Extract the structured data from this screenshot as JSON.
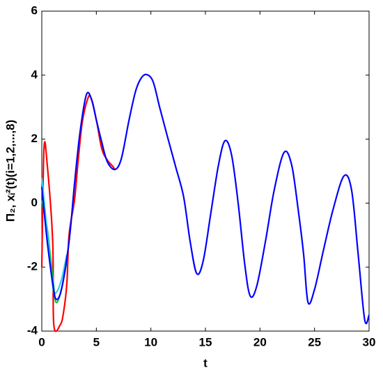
{
  "chart_data": {
    "type": "line",
    "xlabel": "t",
    "ylabel": "Π₂, xᵢ²(t)(i=1,2,...,8)",
    "xlim": [
      0,
      30
    ],
    "xticks": [
      0,
      5,
      10,
      15,
      20,
      25,
      30
    ],
    "ylim": [
      -4,
      6
    ],
    "yticks": [
      -4,
      -2,
      0,
      2,
      4,
      6
    ],
    "grid": false,
    "series": [
      {
        "color": "#ff0000",
        "x": [
          0,
          0.2,
          0.5,
          1.0,
          1.1,
          1.7,
          2.0,
          2.3,
          2.5,
          3.0,
          3.3,
          3.7,
          4.2,
          4.5,
          5.0,
          5.5,
          6.0,
          6.5,
          6.7
        ],
        "values": [
          -2,
          1.7,
          1.2,
          -1.2,
          -3.8,
          -3.8,
          -3.4,
          -2.5,
          -1.0,
          0.1,
          1.2,
          2.5,
          3.25,
          3.3,
          2.6,
          1.7,
          1.35,
          1.15,
          1.05
        ]
      },
      {
        "color": "#00cc44",
        "x": [
          0,
          0.5,
          1.0,
          1.3,
          1.8,
          2.3
        ],
        "values": [
          0.1,
          -0.8,
          -2.3,
          -3.1,
          -2.7,
          -1.8
        ]
      },
      {
        "color": "#33ccee",
        "x": [
          0,
          0.5,
          1.0,
          1.3,
          1.8,
          2.3
        ],
        "values": [
          0.8,
          -0.9,
          -2.6,
          -2.8,
          -2.4,
          -1.6
        ]
      },
      {
        "color": "#0000ff",
        "x": [
          0,
          0.5,
          1,
          1.3,
          1.8,
          2.5,
          3,
          3.5,
          4.1,
          4.6,
          5,
          5.5,
          6,
          6.7,
          7.3,
          8,
          8.6,
          9.1,
          9.6,
          10.2,
          10.8,
          11.5,
          12.3,
          13,
          13.6,
          14.2,
          14.8,
          15.5,
          16.2,
          16.8,
          17.4,
          18,
          18.6,
          19.1,
          19.7,
          20.5,
          21.3,
          22.2,
          22.9,
          23.5,
          24,
          24.4,
          25,
          25.8,
          26.7,
          27.7,
          28.4,
          29,
          29.6,
          30
        ],
        "values": [
          0.5,
          -1.2,
          -2.5,
          -3.0,
          -2.7,
          -1.2,
          0.6,
          2.2,
          3.4,
          3.2,
          2.6,
          1.9,
          1.3,
          1.05,
          1.4,
          2.6,
          3.5,
          3.9,
          4.02,
          3.8,
          3.0,
          2.1,
          1.1,
          0.2,
          -1.2,
          -2.2,
          -1.8,
          -0.3,
          1.2,
          1.95,
          1.5,
          0.0,
          -1.9,
          -2.9,
          -2.6,
          -1.2,
          0.4,
          1.58,
          1.2,
          -0.2,
          -1.6,
          -3.1,
          -2.7,
          -1.5,
          -0.2,
          0.85,
          0.4,
          -1.6,
          -3.65,
          -3.5
        ]
      }
    ]
  }
}
